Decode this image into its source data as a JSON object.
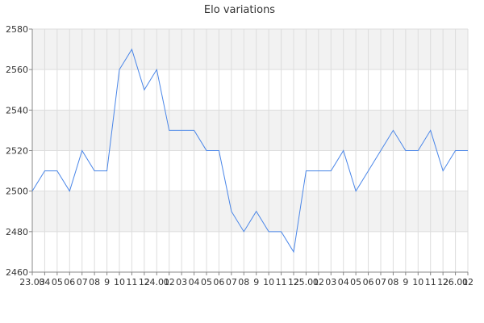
{
  "chart_data": {
    "type": "line",
    "title": "Elo variations",
    "xlabel": "",
    "ylabel": "",
    "ylim": [
      2460,
      2580
    ],
    "y_ticks": [
      2460,
      2480,
      2500,
      2520,
      2540,
      2560,
      2580
    ],
    "x_tick_labels": [
      "23.03",
      "04",
      "05",
      "06",
      "07",
      "08",
      "9",
      "10",
      "11",
      "12",
      "24.01",
      "02",
      "03",
      "04",
      "05",
      "06",
      "07",
      "08",
      "9",
      "10",
      "11",
      "12",
      "25.01",
      "02",
      "03",
      "04",
      "05",
      "06",
      "07",
      "08",
      "9",
      "10",
      "11",
      "12",
      "26.01",
      "02"
    ],
    "grid": true,
    "series_color": "#4a86e8",
    "band_color": "#f2f2f2",
    "series": [
      {
        "values": [
          2500,
          2510,
          2510,
          2500,
          2520,
          2510,
          2510,
          2560,
          2570,
          2550,
          2560,
          2530,
          2530,
          2530,
          2520,
          2520,
          2490,
          2480,
          2490,
          2480,
          2480,
          2470,
          2510,
          2510,
          2510,
          2520,
          2500,
          2510,
          2520,
          2530,
          2520,
          2520,
          2530,
          2510,
          2520,
          2520
        ]
      }
    ]
  }
}
